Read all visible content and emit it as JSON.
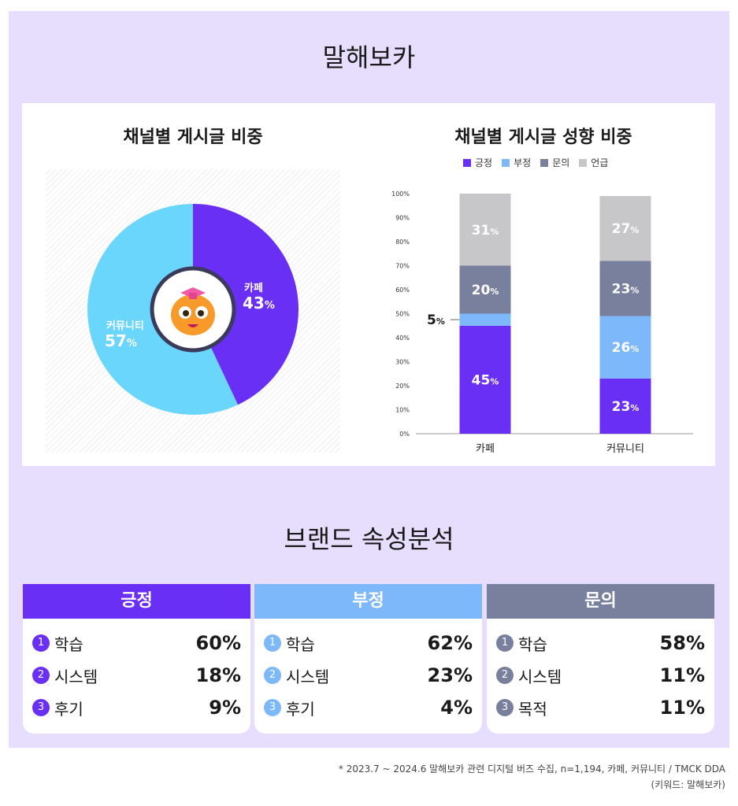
{
  "page_title": "말해보카",
  "section2_title": "브랜드 속성분석",
  "chart_data": [
    {
      "type": "pie",
      "title": "채널별 게시글 비중",
      "slices": [
        {
          "label": "카페",
          "value": 43,
          "value_label": "43",
          "color": "#6a2ff5"
        },
        {
          "label": "커뮤니티",
          "value": 57,
          "value_label": "57",
          "color": "#6ad6fb"
        }
      ],
      "unit": "%"
    },
    {
      "type": "bar",
      "stacked": true,
      "title": "채널별 게시글 성향 비중",
      "categories": [
        "카페",
        "커뮤니티"
      ],
      "series": [
        {
          "name": "긍정",
          "color": "#6a2ff5",
          "values": [
            45,
            23
          ]
        },
        {
          "name": "부정",
          "color": "#7db8fa",
          "values": [
            5,
            26
          ]
        },
        {
          "name": "문의",
          "color": "#78809d",
          "values": [
            20,
            23
          ]
        },
        {
          "name": "언급",
          "color": "#c7c7c9",
          "values": [
            31,
            27
          ]
        }
      ],
      "y_ticks": [
        "0%",
        "10%",
        "20%",
        "30%",
        "40%",
        "50%",
        "60%",
        "70%",
        "80%",
        "90%",
        "100%"
      ],
      "ylim": [
        0,
        100
      ],
      "legend": "top"
    }
  ],
  "pct_symbol": "%",
  "panels": [
    {
      "title": "긍정",
      "color": "#6a2ff5",
      "num_color": "#6a2ff5",
      "items": [
        {
          "n": "1",
          "label": "학습",
          "pct": "60%"
        },
        {
          "n": "2",
          "label": "시스템",
          "pct": "18%"
        },
        {
          "n": "3",
          "label": "후기",
          "pct": "9%"
        }
      ]
    },
    {
      "title": "부정",
      "color": "#7db8fa",
      "num_color": "#7db8fa",
      "items": [
        {
          "n": "1",
          "label": "학습",
          "pct": "62%"
        },
        {
          "n": "2",
          "label": "시스템",
          "pct": "23%"
        },
        {
          "n": "3",
          "label": "후기",
          "pct": "4%"
        }
      ]
    },
    {
      "title": "문의",
      "color": "#78809d",
      "num_color": "#78809d",
      "items": [
        {
          "n": "1",
          "label": "학습",
          "pct": "58%"
        },
        {
          "n": "2",
          "label": "시스템",
          "pct": "11%"
        },
        {
          "n": "3",
          "label": "목적",
          "pct": "11%"
        }
      ]
    }
  ],
  "footnote": {
    "line1": "* 2023.7 ~ 2024.6 말해보카 관련 디지털 버즈 수집, n=1,194, 카페, 커뮤니티 / TMCK DDA",
    "line2": "(키워드: 말해보카)"
  }
}
